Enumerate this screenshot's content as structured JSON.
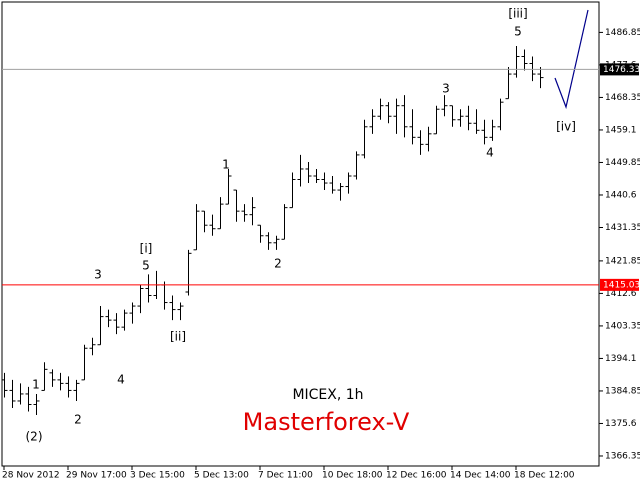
{
  "chart_data": {
    "type": "ohlc",
    "categories": [
      "28 Nov 2012",
      null,
      null,
      null,
      null,
      null,
      null,
      null,
      "29 Nov 17:00",
      null,
      null,
      null,
      null,
      null,
      null,
      null,
      "3 Dec 15:00",
      null,
      null,
      null,
      null,
      null,
      null,
      null,
      "5 Dec 13:00",
      null,
      null,
      null,
      null,
      null,
      null,
      null,
      "7 Dec 11:00",
      null,
      null,
      null,
      null,
      null,
      null,
      null,
      "10 Dec 18:00",
      null,
      null,
      null,
      null,
      null,
      null,
      null,
      "12 Dec 16:00",
      null,
      null,
      null,
      null,
      null,
      null,
      null,
      "14 Dec 14:00",
      null,
      null,
      null,
      null,
      null,
      null,
      null,
      "18 Dec 12:00",
      null,
      null,
      null
    ],
    "open": [
      1388,
      1385,
      1382,
      1384,
      1381,
      1385,
      1390,
      1388,
      1387,
      1385,
      1388,
      1397,
      1398,
      1406,
      1405,
      1403,
      1407,
      1409,
      1414,
      1412,
      1415,
      1410,
      1408,
      1413,
      1425,
      1436,
      1432,
      1431,
      1438,
      1442,
      1436,
      1435,
      1432,
      1429,
      1427,
      1428,
      1437,
      1445,
      1448,
      1446,
      1445,
      1444,
      1442,
      1443,
      1446,
      1452,
      1460,
      1463,
      1466,
      1463,
      1466,
      1460,
      1457,
      1455,
      1458,
      1465,
      1466,
      1462,
      1463,
      1461,
      1459,
      1457,
      1460,
      1468,
      1475,
      1480,
      1478,
      1475
    ],
    "high": [
      1390,
      1388,
      1387,
      1386,
      1384,
      1393,
      1391,
      1390,
      1389,
      1388,
      1398,
      1400,
      1409,
      1408,
      1407,
      1408,
      1410,
      1415,
      1418,
      1419,
      1416,
      1412,
      1410,
      1425,
      1438,
      1436,
      1435,
      1440,
      1448,
      1442,
      1438,
      1440,
      1432,
      1430,
      1429,
      1438,
      1447,
      1452,
      1450,
      1448,
      1447,
      1446,
      1444,
      1447,
      1453,
      1462,
      1465,
      1468,
      1467,
      1468,
      1469,
      1465,
      1459,
      1460,
      1466,
      1469,
      1466,
      1465,
      1466,
      1465,
      1462,
      1462,
      1468,
      1477,
      1483,
      1482,
      1480,
      1477
    ],
    "low": [
      1383,
      1380,
      1381,
      1379,
      1378,
      1385,
      1386,
      1385,
      1383,
      1382,
      1388,
      1395,
      1398,
      1403,
      1401,
      1402,
      1404,
      1407,
      1410,
      1411,
      1408,
      1405,
      1405,
      1412,
      1425,
      1430,
      1429,
      1431,
      1438,
      1433,
      1433,
      1432,
      1427,
      1425,
      1425,
      1428,
      1437,
      1443,
      1444,
      1444,
      1442,
      1441,
      1439,
      1441,
      1445,
      1451,
      1458,
      1462,
      1461,
      1458,
      1457,
      1455,
      1452,
      1453,
      1458,
      1463,
      1460,
      1460,
      1459,
      1458,
      1455,
      1456,
      1459,
      1468,
      1474,
      1476,
      1473,
      1471
    ],
    "close": [
      1385,
      1382,
      1384,
      1381,
      1382,
      1391,
      1388,
      1387,
      1385,
      1387,
      1397,
      1398,
      1406,
      1405,
      1403,
      1407,
      1409,
      1414,
      1412,
      1415,
      1410,
      1408,
      1409,
      1424,
      1436,
      1432,
      1431,
      1438,
      1446,
      1436,
      1435,
      1437,
      1429,
      1427,
      1428,
      1437,
      1445,
      1448,
      1446,
      1445,
      1444,
      1442,
      1443,
      1446,
      1452,
      1460,
      1463,
      1466,
      1463,
      1466,
      1460,
      1457,
      1455,
      1458,
      1465,
      1466,
      1462,
      1463,
      1461,
      1459,
      1457,
      1460,
      1467,
      1475,
      1480,
      1478,
      1475,
      1474
    ],
    "color": "#000000",
    "ylim": [
      1363.5,
      1495.5
    ],
    "yticks": [
      1366.35,
      1375.6,
      1384.85,
      1394.1,
      1403.35,
      1412.6,
      1421.85,
      1431.35,
      1440.6,
      1449.85,
      1459.1,
      1468.35,
      1477.6,
      1486.85
    ],
    "hlines": [
      {
        "value": 1415.03,
        "color": "#ff0000"
      },
      {
        "value": 1476.33,
        "color": "#a0a0a0"
      }
    ],
    "annotations": [
      "(2)",
      "1",
      "2",
      "3",
      "4",
      "[i]",
      "5",
      "[ii]",
      "1",
      "2",
      "3",
      "4",
      "[iii]",
      "5",
      "[iv]"
    ],
    "symbol": "MICEX, 1h",
    "brand": "Masterforex-V"
  }
}
